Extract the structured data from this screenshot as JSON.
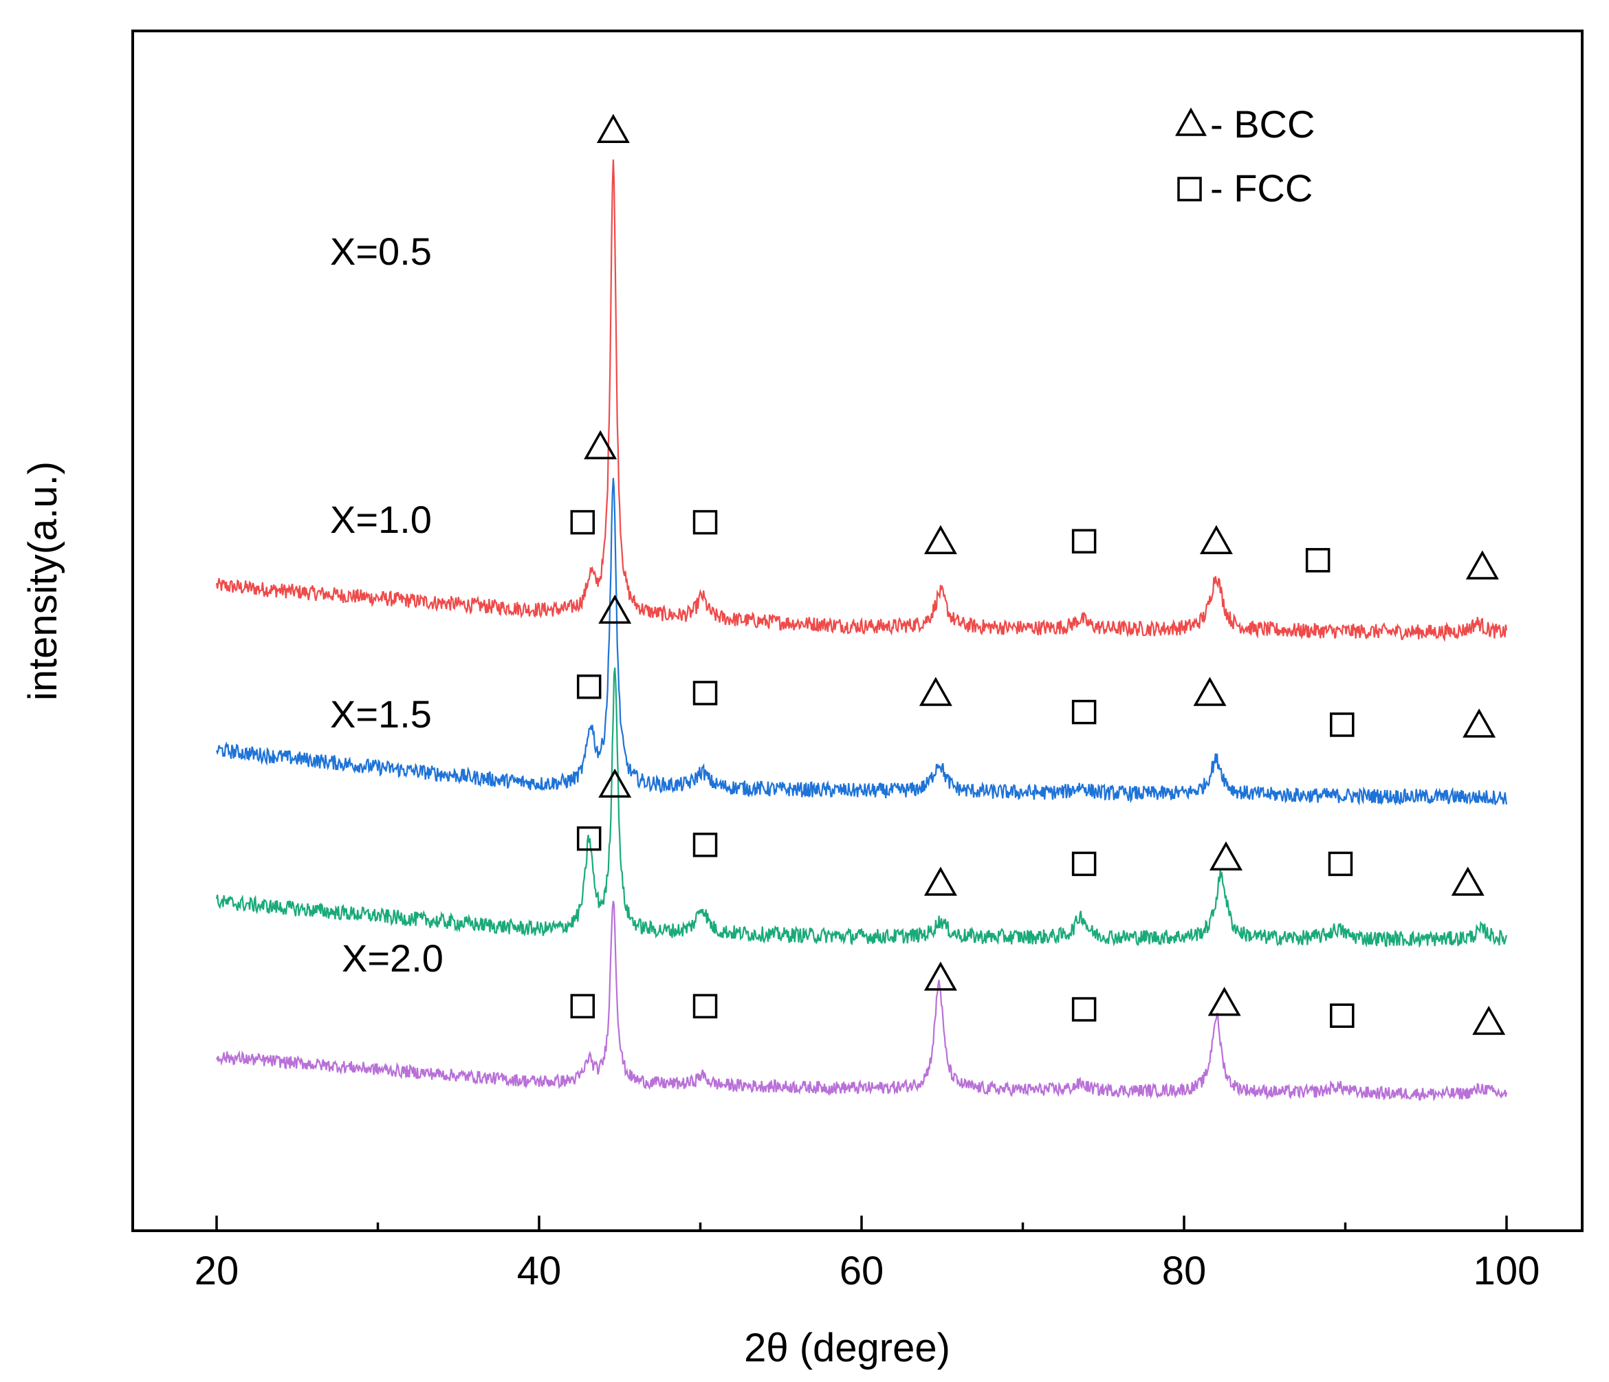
{
  "chart_data": {
    "type": "line",
    "title": "",
    "xlabel": "2θ (degree)",
    "ylabel": "intensity(a.u.)",
    "xlim": [
      15,
      102
    ],
    "xticks": [
      20,
      40,
      60,
      80,
      100
    ],
    "xminor_ticks": [
      30,
      50,
      70,
      90
    ],
    "yticks": [],
    "grid": false,
    "legend_position": "top-right",
    "legend": [
      {
        "marker": "triangle",
        "label": "- BCC"
      },
      {
        "marker": "square",
        "label": "- FCC"
      }
    ],
    "series": [
      {
        "name": "X=0.5",
        "color": "#ef4a4a",
        "baseline": [
          [
            20,
            10.2
          ],
          [
            40,
            9.8
          ],
          [
            60,
            9.55
          ],
          [
            100,
            9.45
          ]
        ],
        "noise": 0.12,
        "peaks": [
          {
            "x": 43.2,
            "h": 0.5,
            "w": 0.3
          },
          {
            "x": 44.6,
            "h": 7.2,
            "w": 0.22
          },
          {
            "x": 50.1,
            "h": 0.35,
            "w": 0.35
          },
          {
            "x": 64.9,
            "h": 0.55,
            "w": 0.45
          },
          {
            "x": 73.6,
            "h": 0.15,
            "w": 0.5
          },
          {
            "x": 82.0,
            "h": 0.85,
            "w": 0.45
          },
          {
            "x": 98.2,
            "h": 0.15,
            "w": 0.5
          }
        ],
        "markers": [
          {
            "type": "square",
            "x": 42.7,
            "y": 11.2
          },
          {
            "type": "triangle",
            "x": 44.6,
            "y": 17.4
          },
          {
            "type": "square",
            "x": 50.3,
            "y": 11.2
          },
          {
            "type": "triangle",
            "x": 64.9,
            "y": 10.9
          },
          {
            "type": "square",
            "x": 73.8,
            "y": 10.9
          },
          {
            "type": "triangle",
            "x": 82.0,
            "y": 10.9
          },
          {
            "type": "square",
            "x": 88.3,
            "y": 10.6
          },
          {
            "type": "triangle",
            "x": 98.5,
            "y": 10.5
          }
        ]
      },
      {
        "name": "X=1.0",
        "color": "#1e73d8",
        "baseline": [
          [
            20,
            7.6
          ],
          [
            40,
            7.05
          ],
          [
            60,
            6.95
          ],
          [
            100,
            6.85
          ]
        ],
        "noise": 0.12,
        "peaks": [
          {
            "x": 43.2,
            "h": 0.85,
            "w": 0.3
          },
          {
            "x": 44.6,
            "h": 4.8,
            "w": 0.24
          },
          {
            "x": 50.1,
            "h": 0.25,
            "w": 0.45
          },
          {
            "x": 64.8,
            "h": 0.45,
            "w": 0.45
          },
          {
            "x": 73.6,
            "h": 0.1,
            "w": 0.5
          },
          {
            "x": 82.0,
            "h": 0.55,
            "w": 0.45
          }
        ],
        "markers": [
          {
            "type": "triangle",
            "x": 43.8,
            "y": 12.4
          },
          {
            "type": "square",
            "x": 43.1,
            "y": 8.6
          },
          {
            "type": "square",
            "x": 50.3,
            "y": 8.5
          },
          {
            "type": "triangle",
            "x": 64.6,
            "y": 8.5
          },
          {
            "type": "square",
            "x": 73.8,
            "y": 8.2
          },
          {
            "type": "triangle",
            "x": 81.6,
            "y": 8.5
          },
          {
            "type": "square",
            "x": 89.8,
            "y": 8.0
          },
          {
            "type": "triangle",
            "x": 98.3,
            "y": 8.0
          }
        ]
      },
      {
        "name": "X=1.5",
        "color": "#1aaa7a",
        "baseline": [
          [
            20,
            5.2
          ],
          [
            40,
            4.75
          ],
          [
            60,
            4.65
          ],
          [
            100,
            4.6
          ]
        ],
        "noise": 0.12,
        "peaks": [
          {
            "x": 43.1,
            "h": 1.4,
            "w": 0.3
          },
          {
            "x": 44.7,
            "h": 4.2,
            "w": 0.22
          },
          {
            "x": 50.1,
            "h": 0.4,
            "w": 0.4
          },
          {
            "x": 64.9,
            "h": 0.25,
            "w": 0.45
          },
          {
            "x": 73.6,
            "h": 0.35,
            "w": 0.4
          },
          {
            "x": 82.3,
            "h": 1.0,
            "w": 0.4
          },
          {
            "x": 89.5,
            "h": 0.15,
            "w": 0.6
          },
          {
            "x": 98.5,
            "h": 0.15,
            "w": 0.5
          }
        ],
        "markers": [
          {
            "type": "triangle",
            "x": 44.7,
            "y": 9.8
          },
          {
            "type": "square",
            "x": 43.1,
            "y": 6.2
          },
          {
            "type": "square",
            "x": 50.3,
            "y": 6.1
          },
          {
            "type": "triangle",
            "x": 64.9,
            "y": 5.5
          },
          {
            "type": "square",
            "x": 73.8,
            "y": 5.8
          },
          {
            "type": "triangle",
            "x": 82.6,
            "y": 5.9
          },
          {
            "type": "square",
            "x": 89.7,
            "y": 5.8
          },
          {
            "type": "triangle",
            "x": 97.6,
            "y": 5.5
          }
        ]
      },
      {
        "name": "X=2.0",
        "color": "#b970d8",
        "baseline": [
          [
            20,
            2.75
          ],
          [
            40,
            2.35
          ],
          [
            60,
            2.25
          ],
          [
            100,
            2.15
          ]
        ],
        "noise": 0.1,
        "peaks": [
          {
            "x": 43.1,
            "h": 0.35,
            "w": 0.3
          },
          {
            "x": 44.6,
            "h": 2.95,
            "w": 0.22
          },
          {
            "x": 50.1,
            "h": 0.15,
            "w": 0.4
          },
          {
            "x": 64.8,
            "h": 1.7,
            "w": 0.32
          },
          {
            "x": 73.6,
            "h": 0.1,
            "w": 0.5
          },
          {
            "x": 82.0,
            "h": 1.2,
            "w": 0.35
          },
          {
            "x": 89.5,
            "h": 0.1,
            "w": 0.6
          },
          {
            "x": 98.5,
            "h": 0.1,
            "w": 0.5
          }
        ],
        "markers": [
          {
            "type": "triangle",
            "x": 44.7,
            "y": 7.05
          },
          {
            "type": "square",
            "x": 42.7,
            "y": 3.55
          },
          {
            "type": "square",
            "x": 50.3,
            "y": 3.55
          },
          {
            "type": "triangle",
            "x": 64.9,
            "y": 4.0
          },
          {
            "type": "square",
            "x": 73.8,
            "y": 3.5
          },
          {
            "type": "triangle",
            "x": 82.5,
            "y": 3.6
          },
          {
            "type": "square",
            "x": 89.8,
            "y": 3.4
          },
          {
            "type": "triangle",
            "x": 98.9,
            "y": 3.3
          }
        ]
      }
    ]
  }
}
